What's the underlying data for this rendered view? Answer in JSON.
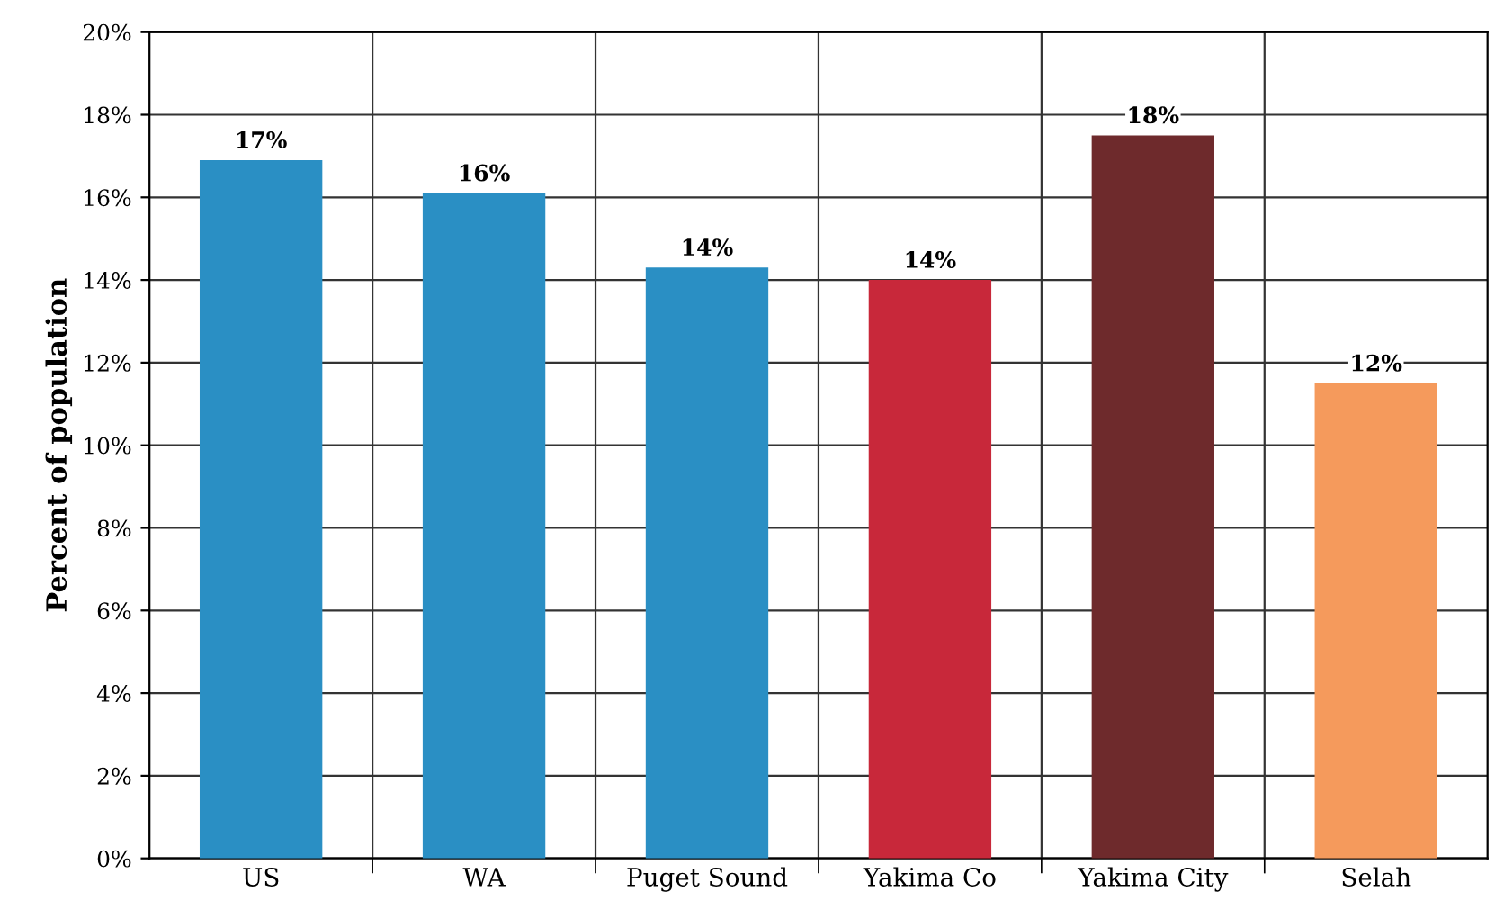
{
  "chart_data": {
    "type": "bar",
    "ylabel": "Percent of population",
    "categories": [
      "US",
      "WA",
      "Puget Sound",
      "Yakima Co",
      "Yakima City",
      "Selah"
    ],
    "values": [
      16.9,
      16.1,
      14.3,
      14.0,
      17.5,
      11.5
    ],
    "value_labels": [
      "17%",
      "16%",
      "14%",
      "14%",
      "18%",
      "12%"
    ],
    "colors": [
      "#2a8fc4",
      "#2a8fc4",
      "#2a8fc4",
      "#c8283a",
      "#6e2a2c",
      "#f59a5c"
    ],
    "ylim": [
      0,
      20
    ],
    "yticks": [
      {
        "value": 0,
        "label": "0%"
      },
      {
        "value": 2,
        "label": "2%"
      },
      {
        "value": 4,
        "label": "4%"
      },
      {
        "value": 6,
        "label": "6%"
      },
      {
        "value": 8,
        "label": "8%"
      },
      {
        "value": 10,
        "label": "10%"
      },
      {
        "value": 12,
        "label": "12%"
      },
      {
        "value": 14,
        "label": "14%"
      },
      {
        "value": 16,
        "label": "16%"
      },
      {
        "value": 18,
        "label": "18%"
      },
      {
        "value": 20,
        "label": "20%"
      }
    ],
    "grid": true,
    "legend": false
  }
}
